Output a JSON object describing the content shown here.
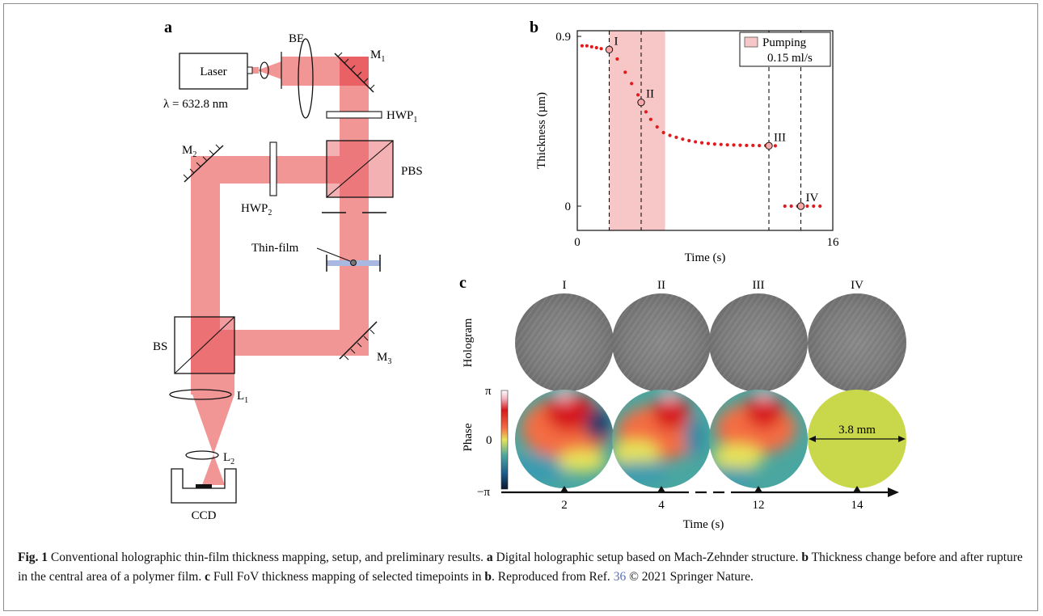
{
  "panels": {
    "a": {
      "label": "a"
    },
    "b": {
      "label": "b"
    },
    "c": {
      "label": "c"
    }
  },
  "setup": {
    "laser_label": "Laser",
    "wavelength": "λ = 632.8 nm",
    "be": "BE",
    "m1": "M",
    "m1_sub": "1",
    "m2": "M",
    "m2_sub": "2",
    "m3": "M",
    "m3_sub": "3",
    "hwp1": "HWP",
    "hwp1_sub": "1",
    "hwp2": "HWP",
    "hwp2_sub": "2",
    "pbs": "PBS",
    "bs": "BS",
    "thin_film": "Thin-film",
    "l1": "L",
    "l1_sub": "1",
    "l2": "L",
    "l2_sub": "2",
    "ccd": "CCD",
    "colors": {
      "beam": "#f08a8a",
      "beam_dark": "#e8585c",
      "film": "#a8b8e0"
    }
  },
  "chart_data": [
    {
      "type": "scatter",
      "panel": "b",
      "title": "",
      "xlabel": "Time (s)",
      "ylabel": "Thickness (µm)",
      "xlim": [
        0,
        16
      ],
      "ylim": [
        0,
        0.9
      ],
      "x_ticks": [
        "0",
        "16"
      ],
      "y_ticks": [
        "0",
        "0.9"
      ],
      "legend": {
        "label_line1": "Pumping",
        "label_line2": "0.15 ml/s",
        "placement": "top-right"
      },
      "shaded_region": {
        "x_start": 2.0,
        "x_end": 5.5,
        "color": "#f7c7c7"
      },
      "dashed_lines_x": [
        2.0,
        4.0,
        12.0,
        14.0
      ],
      "series": [
        {
          "color": "#e31a1c",
          "x": [
            0.3,
            0.6,
            0.9,
            1.2,
            1.5,
            2.0,
            2.5,
            3.0,
            3.4,
            3.8,
            4.0,
            4.3,
            4.6,
            5.0,
            5.4,
            5.8,
            6.2,
            6.6,
            7.0,
            7.4,
            7.8,
            8.2,
            8.6,
            9.0,
            9.4,
            9.8,
            10.2,
            10.6,
            11.0,
            11.4,
            11.8,
            12.0,
            12.4,
            13.0,
            13.4,
            13.8,
            14.0,
            14.4,
            14.8,
            15.2
          ],
          "y": [
            0.85,
            0.85,
            0.845,
            0.84,
            0.835,
            0.83,
            0.78,
            0.71,
            0.65,
            0.59,
            0.55,
            0.5,
            0.46,
            0.42,
            0.39,
            0.375,
            0.365,
            0.355,
            0.347,
            0.341,
            0.336,
            0.332,
            0.329,
            0.327,
            0.325,
            0.324,
            0.323,
            0.322,
            0.322,
            0.321,
            0.321,
            0.32,
            0.32,
            0.0,
            0.0,
            0.0,
            0.0,
            0.0,
            0.0,
            0.0
          ]
        }
      ],
      "annotations": [
        {
          "text": "I",
          "x": 2.0,
          "y": 0.83
        },
        {
          "text": "II",
          "x": 4.0,
          "y": 0.55
        },
        {
          "text": "III",
          "x": 12.0,
          "y": 0.32
        },
        {
          "text": "IV",
          "x": 14.0,
          "y": 0.0
        }
      ]
    }
  ],
  "panel_c": {
    "columns": [
      "I",
      "II",
      "III",
      "IV"
    ],
    "row_labels": {
      "hologram": "Hologram",
      "phase": "Phase"
    },
    "colorbar_ticks": [
      "π",
      "0",
      "−π"
    ],
    "scale_bar": "3.8 mm",
    "time_ticks": [
      "2",
      "4",
      "12",
      "14"
    ],
    "time_axis_label": "Time (s)"
  },
  "caption": {
    "fig_label": "Fig. 1",
    "title": " Conventional holographic thin-film thickness mapping, setup, and preliminary results. ",
    "a_key": "a",
    "a_text": " Digital holographic setup based on Mach-Zehnder structure. ",
    "b_key": "b",
    "b_text": " Thickness change before and after rupture in the central area of a polymer film. ",
    "c_key": "c",
    "c_text": " Full FoV thickness mapping of selected timepoints in ",
    "c_ref_key": "b",
    "reproduced": ". Reproduced from Ref. ",
    "ref_num": "36",
    "copyright": " © 2021 Springer Nature."
  }
}
